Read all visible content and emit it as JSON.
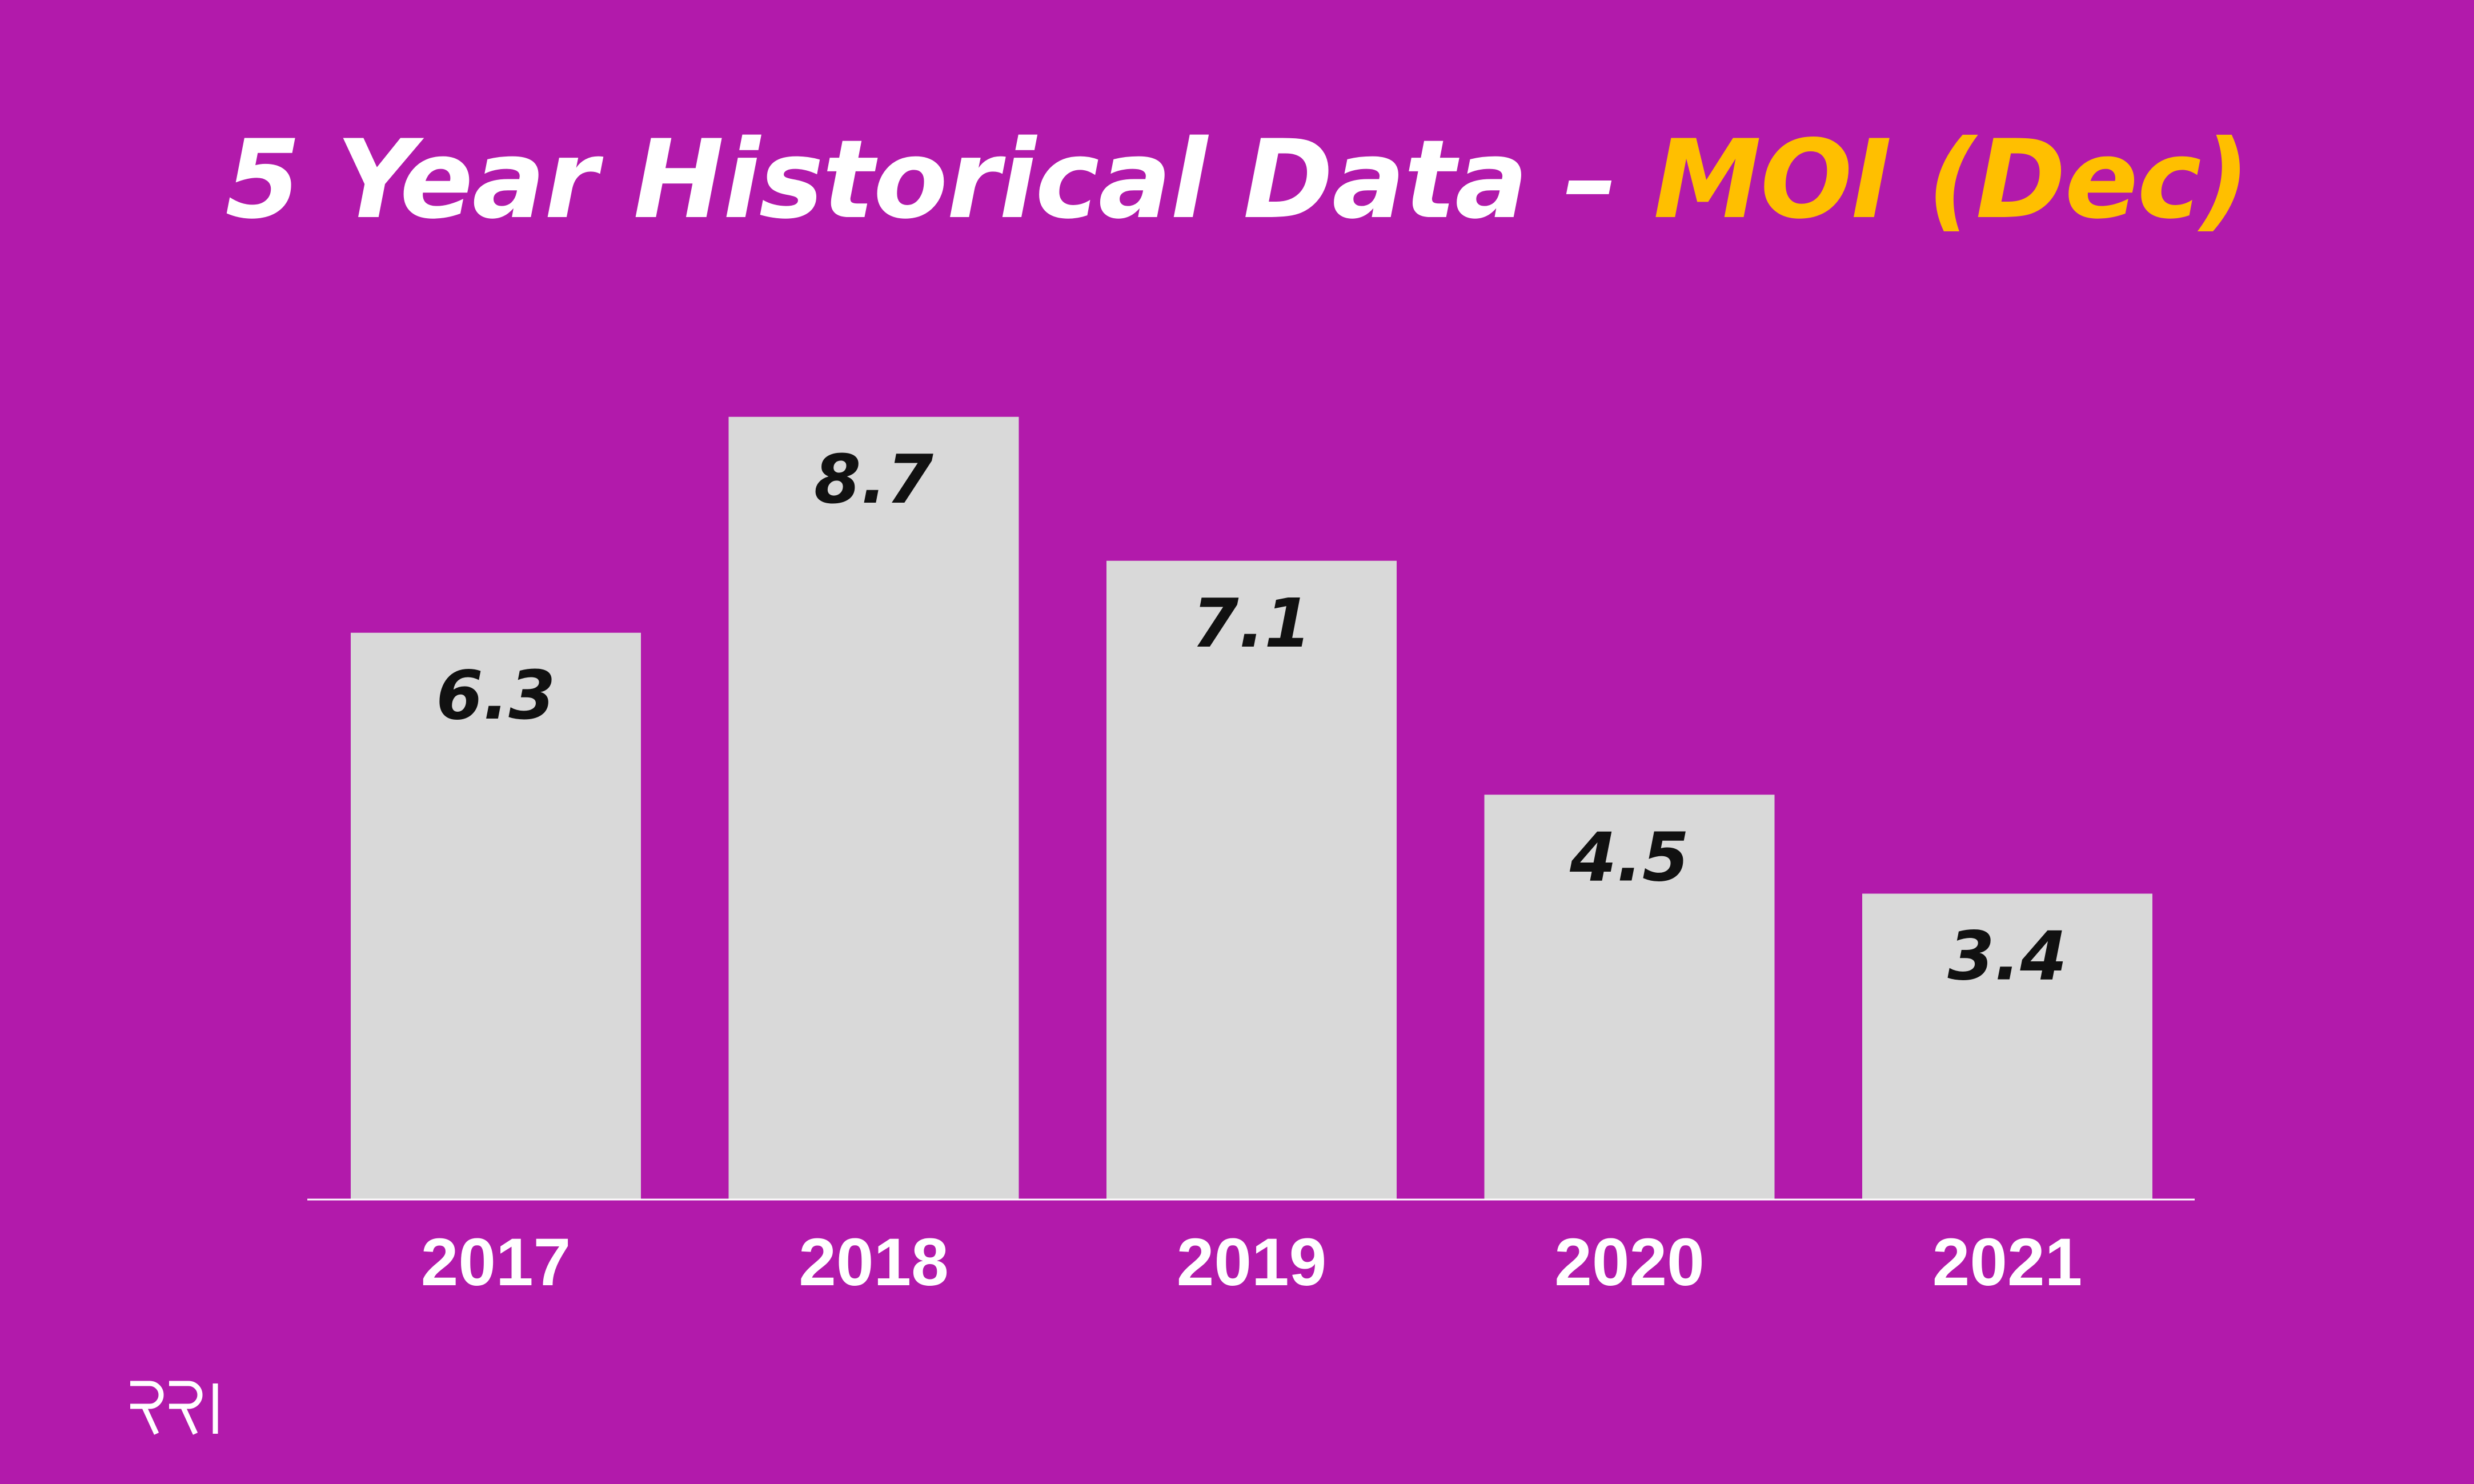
{
  "title": {
    "main": "5 Year Historical Data – ",
    "accent": "MOI (Dec)"
  },
  "colors": {
    "background": "#b21aab",
    "bar": "#d9d9d9",
    "title_main": "#ffffff",
    "title_accent": "#ffbf00",
    "value_label": "#111111",
    "category_label": "#ffffff",
    "axis": "#ffffff"
  },
  "logo": {
    "text": "RRI",
    "icon": "rri-logo-icon"
  },
  "chart_data": {
    "type": "bar",
    "categories": [
      "2017",
      "2018",
      "2019",
      "2020",
      "2021"
    ],
    "values": [
      6.3,
      8.7,
      7.1,
      4.5,
      3.4
    ],
    "value_labels": [
      "6.3",
      "8.7",
      "7.1",
      "4.5",
      "3.4"
    ],
    "title": "5 Year Historical Data – MOI (Dec)",
    "xlabel": "",
    "ylabel": "",
    "ylim": [
      0,
      10
    ],
    "grid": false,
    "legend": "none"
  }
}
